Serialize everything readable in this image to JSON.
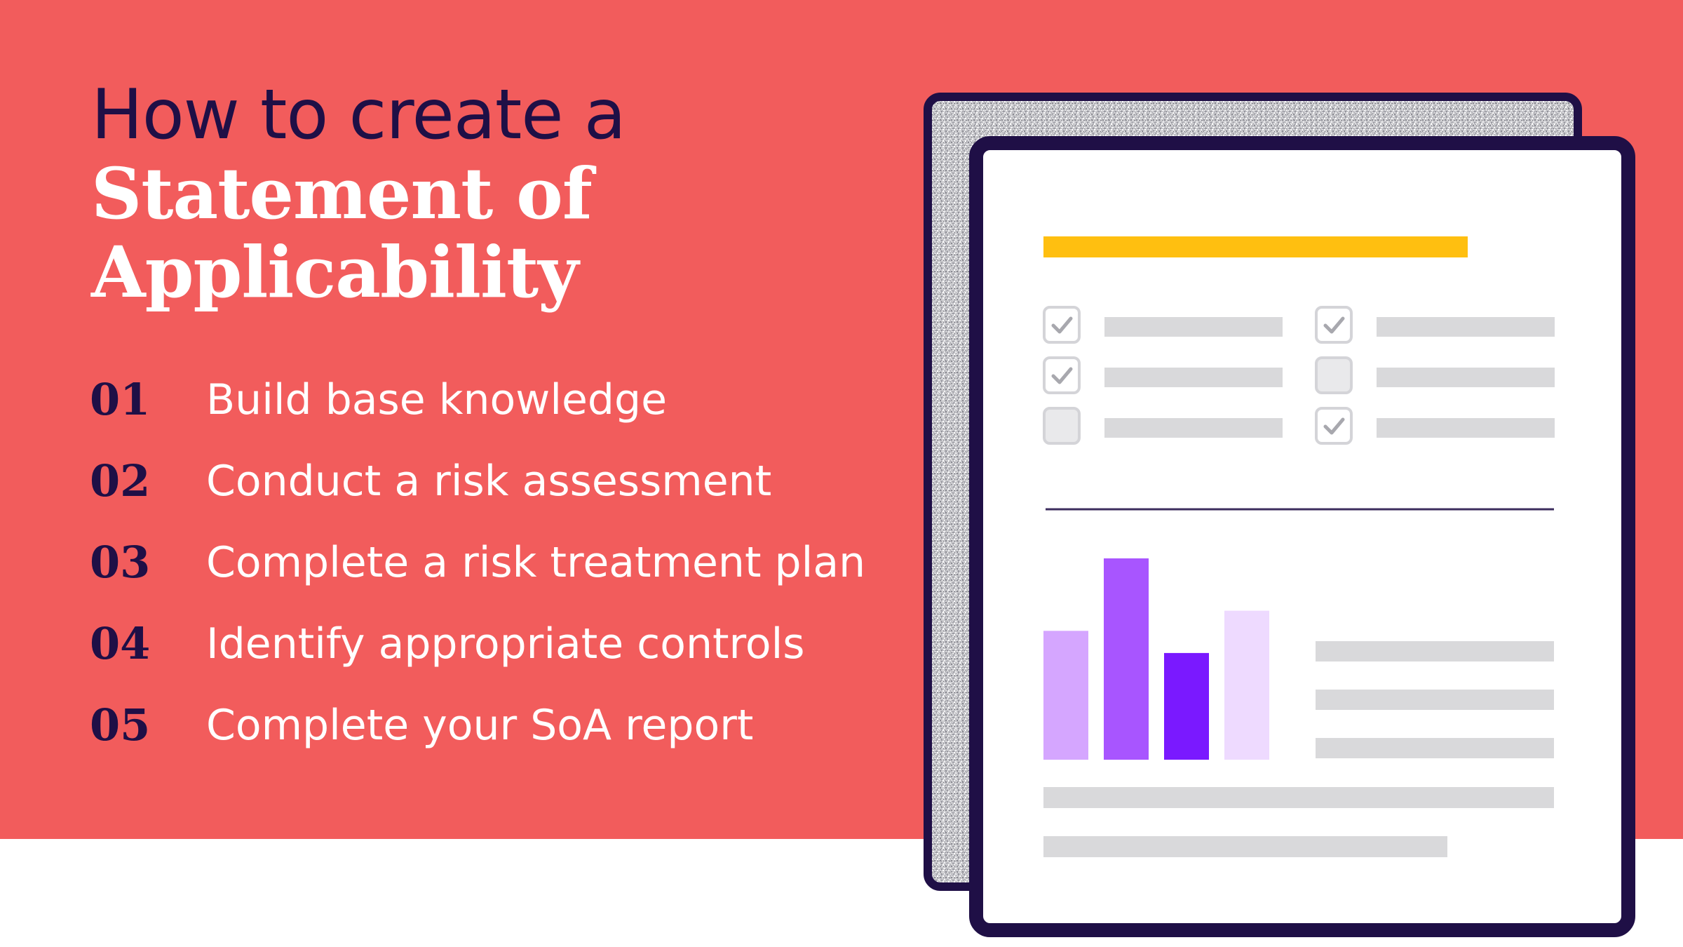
{
  "title": {
    "line1": "How to create a",
    "line2": "Statement of",
    "line3": "Applicability"
  },
  "steps": [
    {
      "number": "01",
      "label": "Build base knowledge"
    },
    {
      "number": "02",
      "label": "Conduct a risk assessment"
    },
    {
      "number": "03",
      "label": "Complete a risk treatment plan"
    },
    {
      "number": "04",
      "label": "Identify appropriate controls"
    },
    {
      "number": "05",
      "label": "Complete your SoA report"
    }
  ],
  "illustration": {
    "checklist": [
      {
        "column": "left",
        "checked": true
      },
      {
        "column": "left",
        "checked": true
      },
      {
        "column": "left",
        "checked": false
      },
      {
        "column": "right",
        "checked": true
      },
      {
        "column": "right",
        "checked": false
      },
      {
        "column": "right",
        "checked": true
      }
    ],
    "bars": [
      {
        "value": 0.64,
        "color": "#d5a6ff"
      },
      {
        "value": 1.0,
        "color": "#a855ff"
      },
      {
        "value": 0.53,
        "color": "#7a19ff"
      },
      {
        "value": 0.74,
        "color": "#eedaff"
      }
    ]
  },
  "colors": {
    "background": "#f25c5c",
    "navy": "#1f0f46",
    "accent_yellow": "#ffbf10",
    "placeholder_gray": "#d9d9db"
  }
}
